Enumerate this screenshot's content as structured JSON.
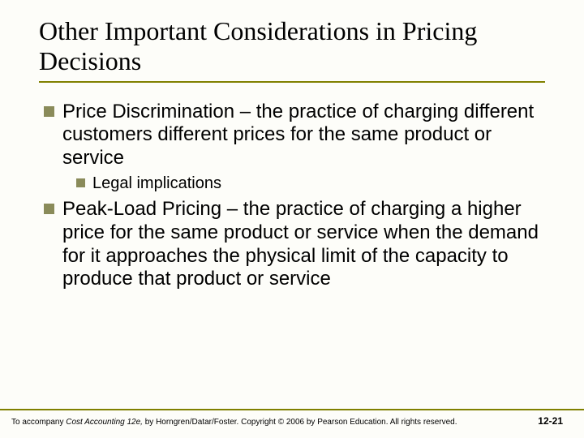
{
  "colors": {
    "accent": "#808000",
    "bullet": "#8a8b5a",
    "background": "#fdfdf9",
    "text": "#000000"
  },
  "typography": {
    "title_font": "Times New Roman",
    "body_font": "Arial",
    "title_size_pt": 32,
    "l1_size_pt": 24,
    "l2_size_pt": 20,
    "footer_size_pt": 10
  },
  "title": "Other Important Considerations in Pricing Decisions",
  "bullets": [
    {
      "level": 1,
      "text": "Price Discrimination – the practice of charging different customers different prices for the same product or service"
    },
    {
      "level": 2,
      "text": "Legal implications"
    },
    {
      "level": 1,
      "text": "Peak-Load Pricing – the practice of charging a higher price for the same product or service when the demand for it approaches the physical limit of the capacity to produce that product or service"
    }
  ],
  "footer": {
    "left_prefix": "To accompany ",
    "left_italic": "Cost Accounting 12e,",
    "left_suffix": " by Horngren/Datar/Foster. Copyright © 2006 by Pearson Education. All rights reserved.",
    "page": "12-21"
  }
}
